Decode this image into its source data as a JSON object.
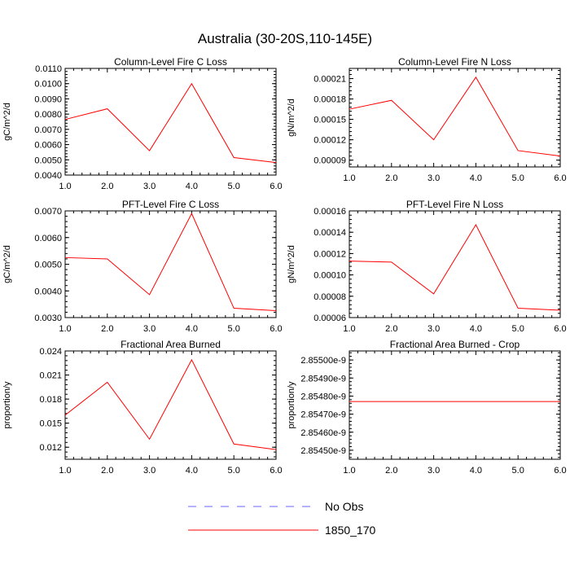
{
  "figure": {
    "title": "Australia (30-20S,110-145E)"
  },
  "legend": {
    "entries": [
      {
        "label": "No Obs",
        "color": "#6666ff",
        "style": "dashed"
      },
      {
        "label": "1850_170",
        "color": "#ff0000",
        "style": "solid"
      }
    ]
  },
  "chart_data": [
    {
      "type": "line",
      "title": "Column-Level Fire C Loss",
      "ylabel": "gC/m^2/d",
      "xlabel": "",
      "x": [
        1,
        2,
        3,
        4,
        5,
        6
      ],
      "xlim": [
        1,
        6
      ],
      "xticks": [
        "1.0",
        "2.0",
        "3.0",
        "4.0",
        "5.0",
        "6.0"
      ],
      "ylim": [
        0.004,
        0.011
      ],
      "yticks": [
        0.004,
        0.005,
        0.006,
        0.007,
        0.008,
        0.009,
        0.01,
        0.011
      ],
      "ytick_labels": [
        "0.0040",
        "0.0050",
        "0.0060",
        "0.0070",
        "0.0080",
        "0.0090",
        "0.0100",
        "0.0110"
      ],
      "series": [
        {
          "name": "1850_170",
          "color": "#ff0000",
          "values": [
            0.00765,
            0.00835,
            0.0056,
            0.01,
            0.00515,
            0.00482
          ]
        }
      ]
    },
    {
      "type": "line",
      "title": "Column-Level Fire N Loss",
      "ylabel": "gN/m^2/d",
      "xlabel": "",
      "x": [
        1,
        2,
        3,
        4,
        5,
        6
      ],
      "xlim": [
        1,
        6
      ],
      "xticks": [
        "1.0",
        "2.0",
        "3.0",
        "4.0",
        "5.0",
        "6.0"
      ],
      "ylim": [
        8e-05,
        0.000225
      ],
      "yticks": [
        9e-05,
        0.00012,
        0.00015,
        0.00018,
        0.00021
      ],
      "ytick_labels": [
        "0.00009",
        "0.00012",
        "0.00015",
        "0.00018",
        "0.00021"
      ],
      "series": [
        {
          "name": "1850_170",
          "color": "#ff0000",
          "values": [
            0.000165,
            0.000178,
            0.00012,
            0.000212,
            0.000104,
            9.6e-05
          ]
        }
      ]
    },
    {
      "type": "line",
      "title": "PFT-Level Fire C Loss",
      "ylabel": "gC/m^2/d",
      "xlabel": "",
      "x": [
        1,
        2,
        3,
        4,
        5,
        6
      ],
      "xlim": [
        1,
        6
      ],
      "xticks": [
        "1.0",
        "2.0",
        "3.0",
        "4.0",
        "5.0",
        "6.0"
      ],
      "ylim": [
        0.003,
        0.007
      ],
      "yticks": [
        0.003,
        0.004,
        0.005,
        0.006,
        0.007
      ],
      "ytick_labels": [
        "0.0030",
        "0.0040",
        "0.0050",
        "0.0060",
        "0.0070"
      ],
      "series": [
        {
          "name": "1850_170",
          "color": "#ff0000",
          "values": [
            0.00525,
            0.0052,
            0.00386,
            0.0069,
            0.00335,
            0.00326
          ]
        }
      ]
    },
    {
      "type": "line",
      "title": "PFT-Level Fire N Loss",
      "ylabel": "gN/m^2/d",
      "xlabel": "",
      "x": [
        1,
        2,
        3,
        4,
        5,
        6
      ],
      "xlim": [
        1,
        6
      ],
      "xticks": [
        "1.0",
        "2.0",
        "3.0",
        "4.0",
        "5.0",
        "6.0"
      ],
      "ylim": [
        6e-05,
        0.00016
      ],
      "yticks": [
        6e-05,
        8e-05,
        0.0001,
        0.00012,
        0.00014,
        0.00016
      ],
      "ytick_labels": [
        "0.00006",
        "0.00008",
        "0.00010",
        "0.00012",
        "0.00014",
        "0.00016"
      ],
      "series": [
        {
          "name": "1850_170",
          "color": "#ff0000",
          "values": [
            0.000113,
            0.000112,
            8.22e-05,
            0.000147,
            6.88e-05,
            6.69e-05
          ]
        }
      ]
    },
    {
      "type": "line",
      "title": "Fractional Area Burned",
      "ylabel": "proportion/y",
      "xlabel": "",
      "x": [
        1,
        2,
        3,
        4,
        5,
        6
      ],
      "xlim": [
        1,
        6
      ],
      "xticks": [
        "1.0",
        "2.0",
        "3.0",
        "4.0",
        "5.0",
        "6.0"
      ],
      "ylim": [
        0.0105,
        0.024
      ],
      "yticks": [
        0.012,
        0.015,
        0.018,
        0.021,
        0.024
      ],
      "ytick_labels": [
        "0.012",
        "0.015",
        "0.018",
        "0.021",
        "0.024"
      ],
      "series": [
        {
          "name": "1850_170",
          "color": "#ff0000",
          "values": [
            0.016,
            0.0201,
            0.013,
            0.0229,
            0.0124,
            0.0117
          ]
        }
      ]
    },
    {
      "type": "line",
      "title": "Fractional Area Burned - Crop",
      "ylabel": "proportion/y",
      "xlabel": "",
      "x": [
        1,
        2,
        3,
        4,
        5,
        6
      ],
      "xlim": [
        1,
        6
      ],
      "xticks": [
        "1.0",
        "2.0",
        "3.0",
        "4.0",
        "5.0",
        "6.0"
      ],
      "ylim": [
        2.85445e-09,
        2.85505e-09
      ],
      "yticks": [
        2.8545e-09,
        2.8546e-09,
        2.8547e-09,
        2.8548e-09,
        2.8549e-09,
        2.855e-09
      ],
      "ytick_labels": [
        "2.85450e-9",
        "2.85460e-9",
        "2.85470e-9",
        "2.85480e-9",
        "2.85490e-9",
        "2.85500e-9"
      ],
      "series": [
        {
          "name": "1850_170",
          "color": "#ff0000",
          "values": [
            2.85477e-09,
            2.85477e-09,
            2.85477e-09,
            2.85477e-09,
            2.85477e-09,
            2.85477e-09
          ]
        }
      ]
    }
  ]
}
